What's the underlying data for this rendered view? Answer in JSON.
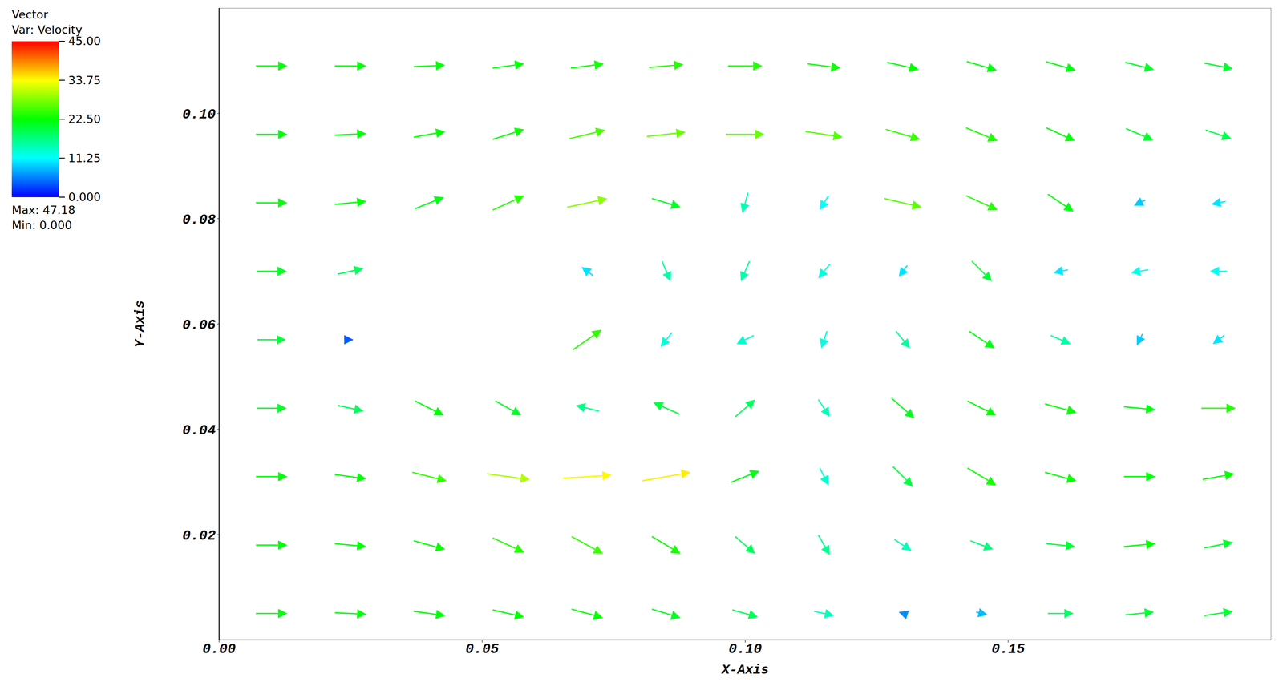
{
  "chart_data": {
    "type": "vector_field",
    "title": "Vector",
    "subtitle": "Var: Velocity",
    "x_label": "X-Axis",
    "y_label": "Y-Axis",
    "xlim": [
      0,
      0.2
    ],
    "ylim": [
      0,
      0.12
    ],
    "xticks": [
      {
        "value": 0,
        "label": "0.00"
      },
      {
        "value": 0.05,
        "label": "0.05"
      },
      {
        "value": 0.1,
        "label": "0.10"
      },
      {
        "value": 0.15,
        "label": "0.15"
      }
    ],
    "yticks": [
      0.02,
      0.04,
      0.06,
      0.08,
      {
        "value": 0.1,
        "label": "0.10"
      }
    ],
    "color_bar": {
      "range": [
        0,
        45
      ],
      "ticks": [
        {
          "value": 0,
          "label": "0.000"
        },
        {
          "value": 11.25,
          "label": "11.25"
        },
        {
          "value": 22.5,
          "label": "22.50"
        },
        {
          "value": 33.75,
          "label": "33.75"
        },
        {
          "value": 45,
          "label": "45.00"
        }
      ]
    },
    "annotations": [
      "Max: 47.18",
      "Min: 0.000"
    ],
    "vectors": [
      {
        "x": 0.01,
        "y": 0.109,
        "u": 22,
        "v": 0
      },
      {
        "x": 0.025,
        "y": 0.109,
        "u": 22,
        "v": 0
      },
      {
        "x": 0.04,
        "y": 0.109,
        "u": 22,
        "v": 1
      },
      {
        "x": 0.055,
        "y": 0.109,
        "u": 22,
        "v": 3
      },
      {
        "x": 0.07,
        "y": 0.109,
        "u": 23,
        "v": 3
      },
      {
        "x": 0.085,
        "y": 0.109,
        "u": 24,
        "v": 2
      },
      {
        "x": 0.1,
        "y": 0.109,
        "u": 24,
        "v": 0
      },
      {
        "x": 0.115,
        "y": 0.109,
        "u": 23,
        "v": -3
      },
      {
        "x": 0.13,
        "y": 0.109,
        "u": 22,
        "v": -5
      },
      {
        "x": 0.145,
        "y": 0.109,
        "u": 21,
        "v": -6
      },
      {
        "x": 0.16,
        "y": 0.109,
        "u": 21,
        "v": -6
      },
      {
        "x": 0.175,
        "y": 0.109,
        "u": 20,
        "v": -5
      },
      {
        "x": 0.19,
        "y": 0.109,
        "u": 20,
        "v": -4
      },
      {
        "x": 0.01,
        "y": 0.096,
        "u": 22,
        "v": 0
      },
      {
        "x": 0.025,
        "y": 0.096,
        "u": 22,
        "v": 1
      },
      {
        "x": 0.04,
        "y": 0.096,
        "u": 22,
        "v": 4
      },
      {
        "x": 0.055,
        "y": 0.096,
        "u": 22,
        "v": 7
      },
      {
        "x": 0.07,
        "y": 0.096,
        "u": 25,
        "v": 6
      },
      {
        "x": 0.085,
        "y": 0.096,
        "u": 27,
        "v": 3
      },
      {
        "x": 0.1,
        "y": 0.096,
        "u": 27,
        "v": 0
      },
      {
        "x": 0.115,
        "y": 0.096,
        "u": 26,
        "v": -4
      },
      {
        "x": 0.13,
        "y": 0.096,
        "u": 24,
        "v": -7
      },
      {
        "x": 0.145,
        "y": 0.096,
        "u": 22,
        "v": -9
      },
      {
        "x": 0.16,
        "y": 0.096,
        "u": 20,
        "v": -9
      },
      {
        "x": 0.175,
        "y": 0.096,
        "u": 19,
        "v": -8
      },
      {
        "x": 0.19,
        "y": 0.096,
        "u": 18,
        "v": -6
      },
      {
        "x": 0.01,
        "y": 0.083,
        "u": 22,
        "v": 0
      },
      {
        "x": 0.025,
        "y": 0.083,
        "u": 22,
        "v": 2
      },
      {
        "x": 0.04,
        "y": 0.083,
        "u": 20,
        "v": 8
      },
      {
        "x": 0.055,
        "y": 0.083,
        "u": 22,
        "v": 10
      },
      {
        "x": 0.07,
        "y": 0.083,
        "u": 28,
        "v": 6
      },
      {
        "x": 0.085,
        "y": 0.083,
        "u": 20,
        "v": -6
      },
      {
        "x": 0.1,
        "y": 0.083,
        "u": -4,
        "v": -14
      },
      {
        "x": 0.115,
        "y": 0.083,
        "u": -6,
        "v": -10
      },
      {
        "x": 0.13,
        "y": 0.083,
        "u": 26,
        "v": -6
      },
      {
        "x": 0.145,
        "y": 0.083,
        "u": 22,
        "v": -10
      },
      {
        "x": 0.16,
        "y": 0.083,
        "u": 18,
        "v": -12
      },
      {
        "x": 0.175,
        "y": 0.083,
        "u": -8,
        "v": -4
      },
      {
        "x": 0.19,
        "y": 0.083,
        "u": -10,
        "v": -2
      },
      {
        "x": 0.01,
        "y": 0.07,
        "u": 21,
        "v": 0
      },
      {
        "x": 0.025,
        "y": 0.07,
        "u": 18,
        "v": 4
      },
      {
        "x": 0.07,
        "y": 0.07,
        "u": -8,
        "v": 6
      },
      {
        "x": 0.085,
        "y": 0.07,
        "u": 6,
        "v": -14
      },
      {
        "x": 0.1,
        "y": 0.07,
        "u": -6,
        "v": -14
      },
      {
        "x": 0.115,
        "y": 0.07,
        "u": -8,
        "v": -10
      },
      {
        "x": 0.13,
        "y": 0.07,
        "u": -6,
        "v": -8
      },
      {
        "x": 0.145,
        "y": 0.07,
        "u": 14,
        "v": -14
      },
      {
        "x": 0.16,
        "y": 0.07,
        "u": -10,
        "v": -2
      },
      {
        "x": 0.175,
        "y": 0.07,
        "u": -12,
        "v": -2
      },
      {
        "x": 0.19,
        "y": 0.07,
        "u": -12,
        "v": 0
      },
      {
        "x": 0.01,
        "y": 0.057,
        "u": 20,
        "v": 0
      },
      {
        "x": 0.025,
        "y": 0.057,
        "u": 4,
        "v": 0
      },
      {
        "x": 0.07,
        "y": 0.057,
        "u": 20,
        "v": 14
      },
      {
        "x": 0.085,
        "y": 0.057,
        "u": -8,
        "v": -10
      },
      {
        "x": 0.1,
        "y": 0.057,
        "u": -12,
        "v": -6
      },
      {
        "x": 0.115,
        "y": 0.057,
        "u": -4,
        "v": -12
      },
      {
        "x": 0.13,
        "y": 0.057,
        "u": 10,
        "v": -12
      },
      {
        "x": 0.145,
        "y": 0.057,
        "u": 18,
        "v": -12
      },
      {
        "x": 0.16,
        "y": 0.057,
        "u": 14,
        "v": -6
      },
      {
        "x": 0.175,
        "y": 0.057,
        "u": -4,
        "v": -8
      },
      {
        "x": 0.19,
        "y": 0.057,
        "u": -8,
        "v": -6
      },
      {
        "x": 0.01,
        "y": 0.044,
        "u": 21,
        "v": 0
      },
      {
        "x": 0.025,
        "y": 0.044,
        "u": 18,
        "v": -4
      },
      {
        "x": 0.04,
        "y": 0.044,
        "u": 20,
        "v": -10
      },
      {
        "x": 0.055,
        "y": 0.044,
        "u": 18,
        "v": -10
      },
      {
        "x": 0.07,
        "y": 0.044,
        "u": -16,
        "v": 4
      },
      {
        "x": 0.085,
        "y": 0.044,
        "u": -18,
        "v": 8
      },
      {
        "x": 0.1,
        "y": 0.044,
        "u": 14,
        "v": 12
      },
      {
        "x": 0.115,
        "y": 0.044,
        "u": 8,
        "v": -12
      },
      {
        "x": 0.13,
        "y": 0.044,
        "u": 16,
        "v": -14
      },
      {
        "x": 0.145,
        "y": 0.044,
        "u": 20,
        "v": -10
      },
      {
        "x": 0.16,
        "y": 0.044,
        "u": 22,
        "v": -6
      },
      {
        "x": 0.175,
        "y": 0.044,
        "u": 22,
        "v": -2
      },
      {
        "x": 0.19,
        "y": 0.044,
        "u": 24,
        "v": 0
      },
      {
        "x": 0.01,
        "y": 0.031,
        "u": 22,
        "v": 0
      },
      {
        "x": 0.025,
        "y": 0.031,
        "u": 22,
        "v": -3
      },
      {
        "x": 0.04,
        "y": 0.031,
        "u": 24,
        "v": -6
      },
      {
        "x": 0.055,
        "y": 0.031,
        "u": 30,
        "v": -4
      },
      {
        "x": 0.07,
        "y": 0.031,
        "u": 34,
        "v": 2
      },
      {
        "x": 0.085,
        "y": 0.031,
        "u": 34,
        "v": 6
      },
      {
        "x": 0.1,
        "y": 0.031,
        "u": 20,
        "v": 8
      },
      {
        "x": 0.115,
        "y": 0.031,
        "u": 6,
        "v": -12
      },
      {
        "x": 0.13,
        "y": 0.031,
        "u": 14,
        "v": -14
      },
      {
        "x": 0.145,
        "y": 0.031,
        "u": 20,
        "v": -12
      },
      {
        "x": 0.16,
        "y": 0.031,
        "u": 22,
        "v": -6
      },
      {
        "x": 0.175,
        "y": 0.031,
        "u": 22,
        "v": 0
      },
      {
        "x": 0.19,
        "y": 0.031,
        "u": 22,
        "v": 4
      },
      {
        "x": 0.01,
        "y": 0.018,
        "u": 22,
        "v": 0
      },
      {
        "x": 0.025,
        "y": 0.018,
        "u": 22,
        "v": -2
      },
      {
        "x": 0.04,
        "y": 0.018,
        "u": 22,
        "v": -6
      },
      {
        "x": 0.055,
        "y": 0.018,
        "u": 22,
        "v": -10
      },
      {
        "x": 0.07,
        "y": 0.018,
        "u": 22,
        "v": -12
      },
      {
        "x": 0.085,
        "y": 0.018,
        "u": 20,
        "v": -12
      },
      {
        "x": 0.1,
        "y": 0.018,
        "u": 14,
        "v": -12
      },
      {
        "x": 0.115,
        "y": 0.018,
        "u": 8,
        "v": -14
      },
      {
        "x": 0.13,
        "y": 0.018,
        "u": 12,
        "v": -8
      },
      {
        "x": 0.145,
        "y": 0.018,
        "u": 16,
        "v": -6
      },
      {
        "x": 0.16,
        "y": 0.018,
        "u": 20,
        "v": -2
      },
      {
        "x": 0.175,
        "y": 0.018,
        "u": 22,
        "v": 2
      },
      {
        "x": 0.19,
        "y": 0.018,
        "u": 20,
        "v": 4
      },
      {
        "x": 0.01,
        "y": 0.005,
        "u": 22,
        "v": 0
      },
      {
        "x": 0.025,
        "y": 0.005,
        "u": 22,
        "v": -1
      },
      {
        "x": 0.04,
        "y": 0.005,
        "u": 22,
        "v": -3
      },
      {
        "x": 0.055,
        "y": 0.005,
        "u": 22,
        "v": -5
      },
      {
        "x": 0.07,
        "y": 0.005,
        "u": 22,
        "v": -6
      },
      {
        "x": 0.085,
        "y": 0.005,
        "u": 20,
        "v": -6
      },
      {
        "x": 0.1,
        "y": 0.005,
        "u": 18,
        "v": -5
      },
      {
        "x": 0.115,
        "y": 0.005,
        "u": 14,
        "v": -3
      },
      {
        "x": 0.13,
        "y": 0.005,
        "u": -6,
        "v": 2
      },
      {
        "x": 0.145,
        "y": 0.005,
        "u": 8,
        "v": -2
      },
      {
        "x": 0.16,
        "y": 0.005,
        "u": 18,
        "v": 0
      },
      {
        "x": 0.175,
        "y": 0.005,
        "u": 20,
        "v": 2
      },
      {
        "x": 0.19,
        "y": 0.005,
        "u": 20,
        "v": 3
      }
    ]
  }
}
